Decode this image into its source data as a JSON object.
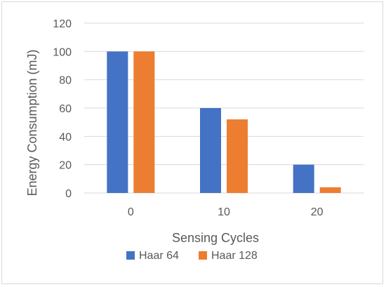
{
  "chart_data": {
    "type": "bar",
    "title": "",
    "xlabel": "Sensing Cycles",
    "ylabel": "Energy Consumption (mJ)",
    "categories": [
      "0",
      "10",
      "20"
    ],
    "series": [
      {
        "name": "Haar 64",
        "values": [
          100,
          60,
          20
        ],
        "color": "#4472c4"
      },
      {
        "name": "Haar 128",
        "values": [
          100,
          52,
          4
        ],
        "color": "#ed7d31"
      }
    ],
    "ylim": [
      0,
      120
    ],
    "yticks": [
      "0",
      "20",
      "40",
      "60",
      "80",
      "100",
      "120"
    ],
    "grid": true,
    "legend_position": "bottom"
  }
}
